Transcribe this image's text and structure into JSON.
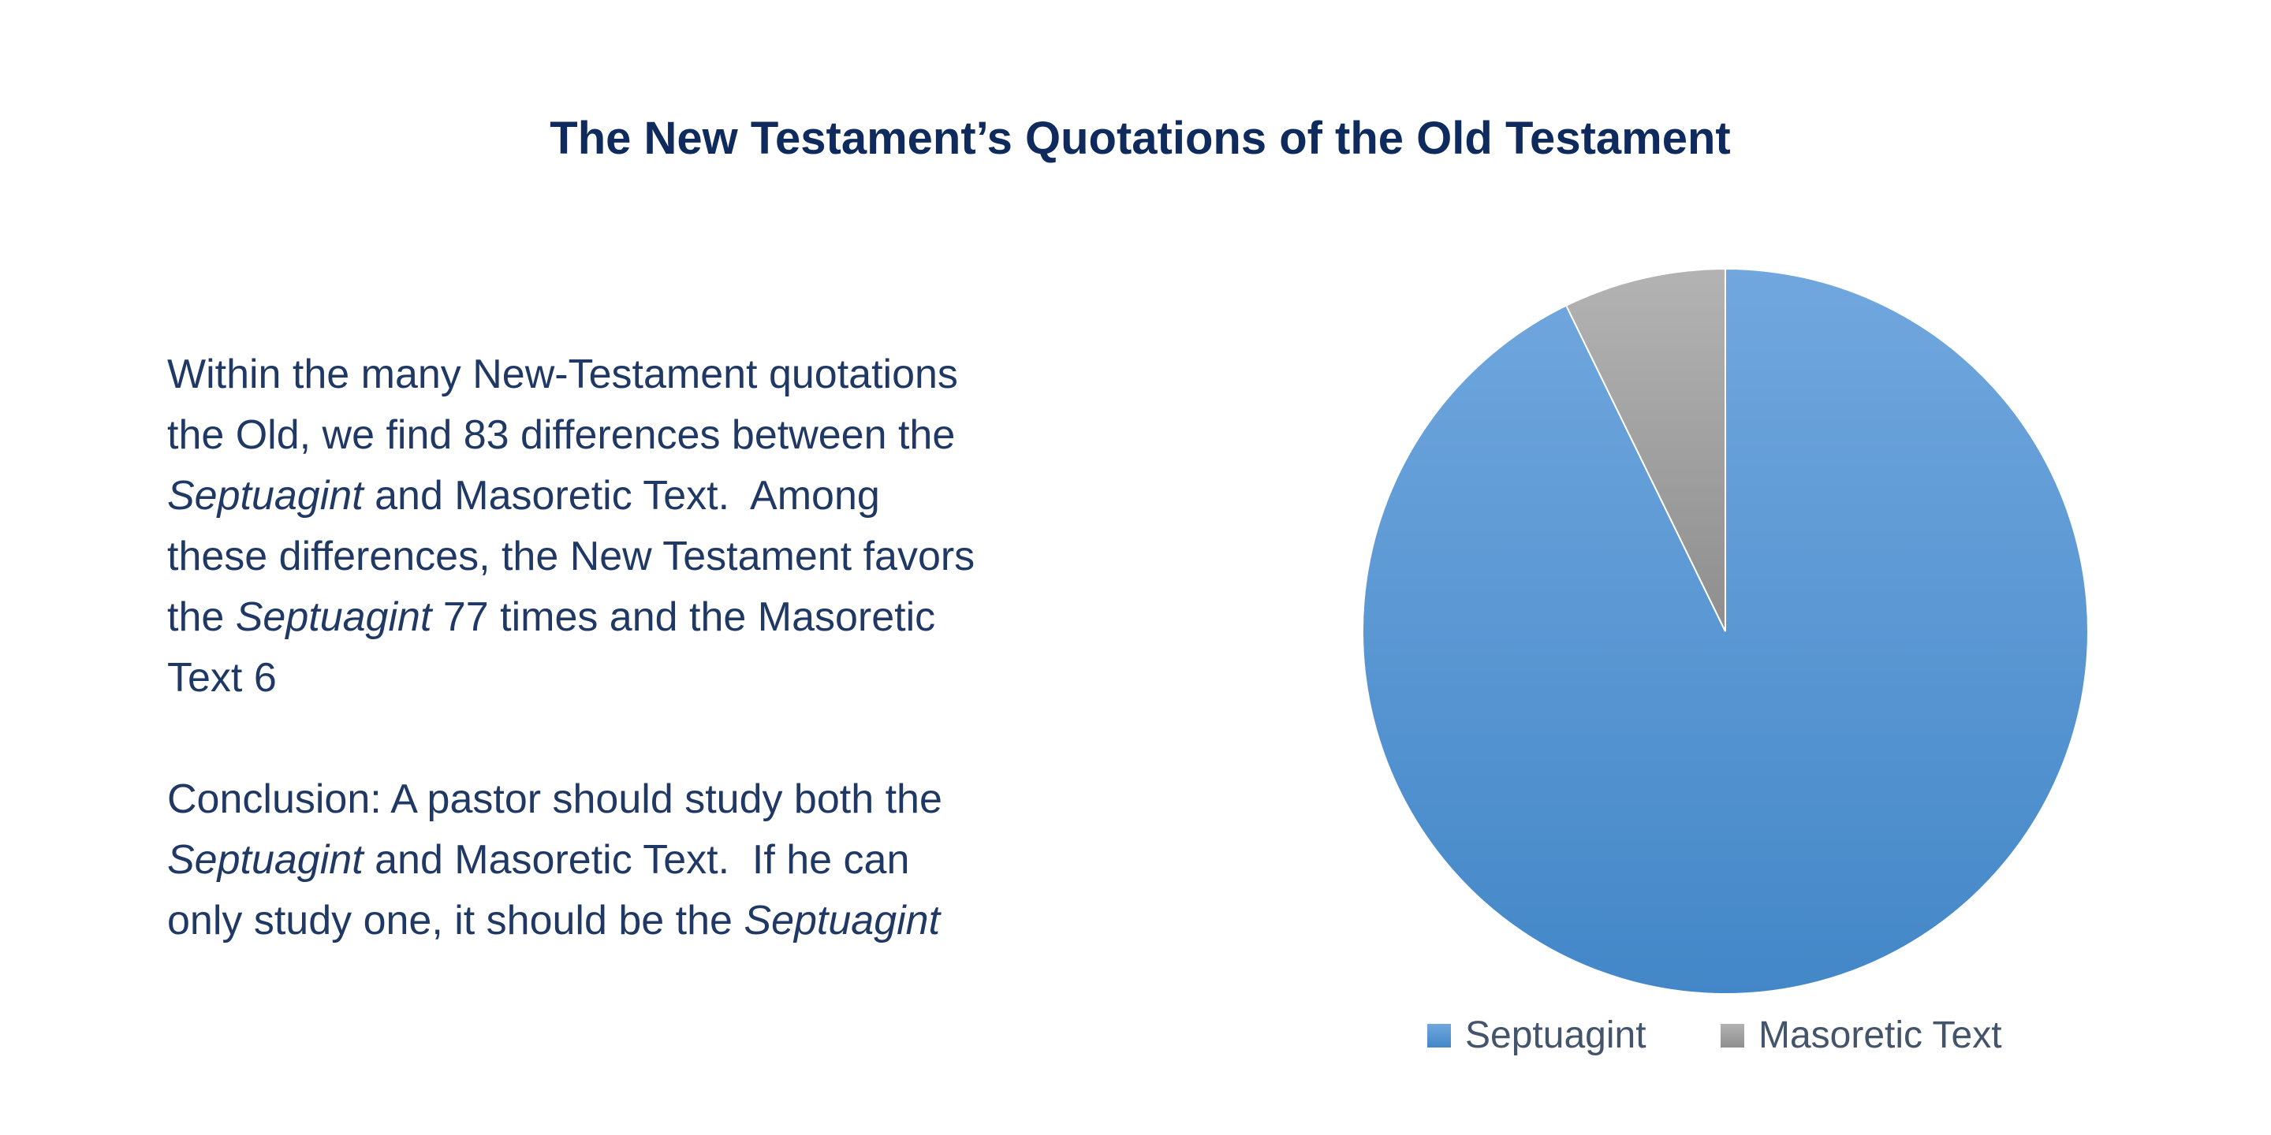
{
  "title": "The New Testament’s Quotations of the Old Testament",
  "body": {
    "lines": [
      [
        {
          "t": "Within the many New-Testament quotations",
          "i": false
        }
      ],
      [
        {
          "t": "the Old, we find 83 differences between the",
          "i": false
        }
      ],
      [
        {
          "t": "Septuagint",
          "i": true
        },
        {
          "t": " and Masoretic Text.  Among",
          "i": false
        }
      ],
      [
        {
          "t": "these differences, the New Testament favors",
          "i": false
        }
      ],
      [
        {
          "t": "the ",
          "i": false
        },
        {
          "t": "Septuagint",
          "i": true
        },
        {
          "t": " 77 times and the Masoretic",
          "i": false
        }
      ],
      [
        {
          "t": "Text 6",
          "i": false
        }
      ],
      [],
      [
        {
          "t": "Conclusion: A pastor should study both the",
          "i": false
        }
      ],
      [
        {
          "t": "Septuagint",
          "i": true
        },
        {
          "t": " and Masoretic Text.  If he can",
          "i": false
        }
      ],
      [
        {
          "t": "only study one, it should be the ",
          "i": false
        },
        {
          "t": "Septuagint",
          "i": true
        }
      ]
    ]
  },
  "chart_data": {
    "type": "pie",
    "categories": [
      "Septuagint",
      "Masoretic Text"
    ],
    "values": [
      77,
      6
    ],
    "colors": [
      "#5b9bd5",
      "#a5a5a5"
    ],
    "start_angle": "12 o'clock, Masoretic Text counter-clockwise",
    "legend": {
      "position": "bottom",
      "entries": [
        "Septuagint",
        "Masoretic Text"
      ]
    }
  }
}
